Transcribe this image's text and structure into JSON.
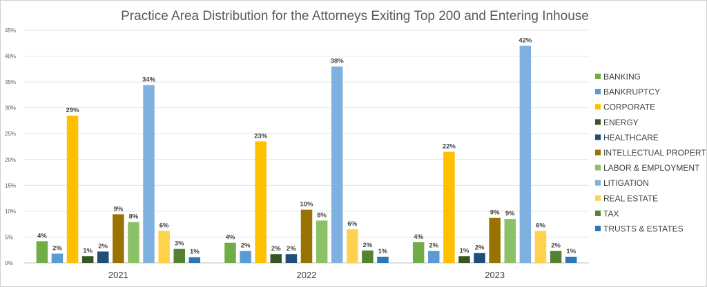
{
  "chart_data": {
    "type": "bar",
    "title": "Practice Area Distribution for the Attorneys Exiting Top 200 and Entering Inhouse",
    "categories": [
      "2021",
      "2022",
      "2023"
    ],
    "ylim": [
      0,
      45
    ],
    "y_ticks": [
      "0%",
      "5%",
      "10%",
      "15%",
      "20%",
      "25%",
      "30%",
      "35%",
      "40%",
      "45%"
    ],
    "grid": true,
    "legend_position": "right",
    "series": [
      {
        "name": "BANKING",
        "color": "#70ad47",
        "values": [
          4.2,
          3.9,
          4.0
        ],
        "labels": [
          "4%",
          "4%",
          "4%"
        ]
      },
      {
        "name": "BANKRUPTCY",
        "color": "#5b9bd5",
        "values": [
          1.8,
          2.3,
          2.3
        ],
        "labels": [
          "2%",
          "2%",
          "2%"
        ]
      },
      {
        "name": "CORPORATE",
        "color": "#ffc000",
        "values": [
          28.5,
          23.5,
          21.5
        ],
        "labels": [
          "29%",
          "23%",
          "22%"
        ]
      },
      {
        "name": "ENERGY",
        "color": "#375623",
        "values": [
          1.3,
          1.7,
          1.3
        ],
        "labels": [
          "1%",
          "2%",
          "1%"
        ]
      },
      {
        "name": "HEALTHCARE",
        "color": "#1f4e79",
        "values": [
          2.2,
          1.7,
          1.9
        ],
        "labels": [
          "2%",
          "2%",
          "2%"
        ]
      },
      {
        "name": "INTELLECTUAL PROPERTY",
        "color": "#997300",
        "values": [
          9.4,
          10.3,
          8.7
        ],
        "labels": [
          "9%",
          "10%",
          "9%"
        ]
      },
      {
        "name": "LABOR & EMPLOYMENT",
        "color": "#8cc168",
        "values": [
          7.9,
          8.2,
          8.5
        ],
        "labels": [
          "8%",
          "8%",
          "9%"
        ]
      },
      {
        "name": "LITIGATION",
        "color": "#7eb1e0",
        "values": [
          34.4,
          38.0,
          42.0
        ],
        "labels": [
          "34%",
          "38%",
          "42%"
        ]
      },
      {
        "name": "REAL ESTATE",
        "color": "#ffd24d",
        "values": [
          6.2,
          6.5,
          6.2
        ],
        "labels": [
          "6%",
          "6%",
          "6%"
        ]
      },
      {
        "name": "TAX",
        "color": "#548235",
        "values": [
          2.7,
          2.4,
          2.3
        ],
        "labels": [
          "3%",
          "2%",
          "2%"
        ]
      },
      {
        "name": "TRUSTS & ESTATES",
        "color": "#2e75b6",
        "values": [
          1.1,
          1.2,
          1.2
        ],
        "labels": [
          "1%",
          "1%",
          "1%"
        ]
      }
    ]
  }
}
